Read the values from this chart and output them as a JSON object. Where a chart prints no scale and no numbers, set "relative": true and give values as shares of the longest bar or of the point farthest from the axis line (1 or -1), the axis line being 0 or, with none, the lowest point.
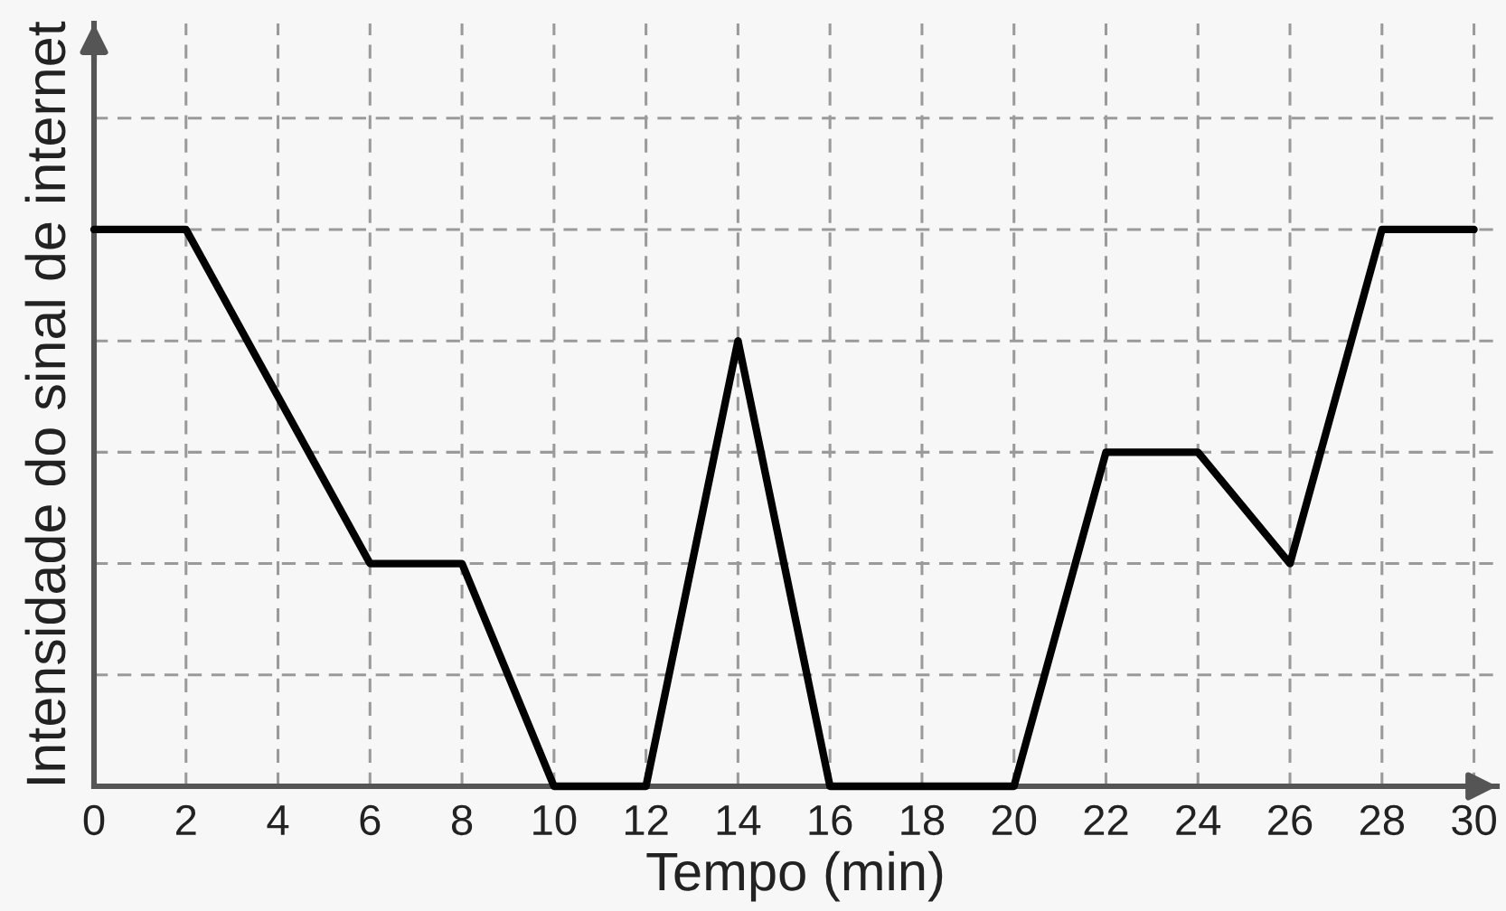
{
  "chart_data": {
    "type": "line",
    "xlabel": "Tempo (min)",
    "ylabel": "Intensidade do sinal de internet",
    "x": [
      0,
      2,
      6,
      8,
      10,
      12,
      14,
      16,
      20,
      22,
      24,
      26,
      28,
      30
    ],
    "series": [
      {
        "color": "#000000",
        "values": [
          1,
          1,
          0.4,
          0.4,
          0,
          0,
          0.8,
          0,
          0,
          0.6,
          0.6,
          0.4,
          1,
          1
        ]
      }
    ],
    "relative": true,
    "xlim": [
      0,
      30.5
    ],
    "xticks": [
      0,
      2,
      4,
      6,
      8,
      10,
      12,
      14,
      16,
      18,
      20,
      22,
      24,
      26,
      28,
      30
    ],
    "grid": true,
    "line_style": "solid",
    "tick_labels": "x"
  }
}
